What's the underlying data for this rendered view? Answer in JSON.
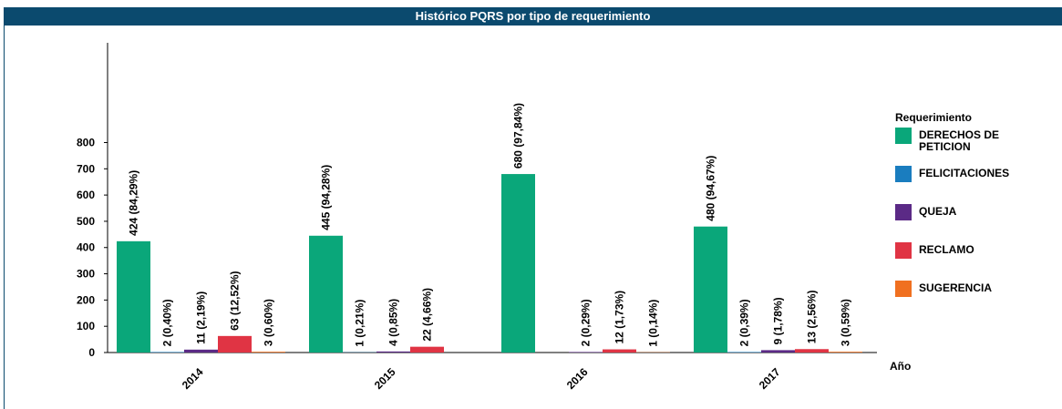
{
  "chart_data": {
    "type": "bar",
    "title": "Histórico PQRS por tipo de requerimiento",
    "x_label": "Año",
    "legend_title": "Requerimiento",
    "categories": [
      "2014",
      "2015",
      "2016",
      "2017"
    ],
    "series": [
      {
        "name": "DERECHOS DE PETICION",
        "color": "#0aa77a",
        "values": [
          424,
          445,
          680,
          480
        ],
        "value_labels": [
          "424 (84,29%)",
          "445 (94,28%)",
          "680 (97,84%)",
          "480 (94,67%)"
        ]
      },
      {
        "name": "FELICITACIONES",
        "color": "#1a7dbf",
        "values": [
          2,
          1,
          null,
          2
        ],
        "value_labels": [
          "2 (0,40%)",
          "1 (0,21%)",
          null,
          "2 (0,39%)"
        ]
      },
      {
        "name": "QUEJA",
        "color": "#5b2a86",
        "values": [
          11,
          4,
          2,
          9
        ],
        "value_labels": [
          "11 (2,19%)",
          "4 (0,85%)",
          "2 (0,29%)",
          "9 (1,78%)"
        ]
      },
      {
        "name": "RECLAMO",
        "color": "#e03444",
        "values": [
          63,
          22,
          12,
          13
        ],
        "value_labels": [
          "63 (12,52%)",
          "22 (4,66%)",
          "12 (1,73%)",
          "13 (2,56%)"
        ]
      },
      {
        "name": "SUGERENCIA",
        "color": "#f07020",
        "values": [
          3,
          null,
          1,
          3
        ],
        "value_labels": [
          "3 (0,60%)",
          null,
          "1 (0,14%)",
          "3 (0,59%)"
        ]
      }
    ],
    "ylim": [
      0,
      1180
    ],
    "yticks": [
      0,
      100,
      200,
      300,
      400,
      500,
      600,
      700,
      800
    ],
    "legend": "right"
  }
}
